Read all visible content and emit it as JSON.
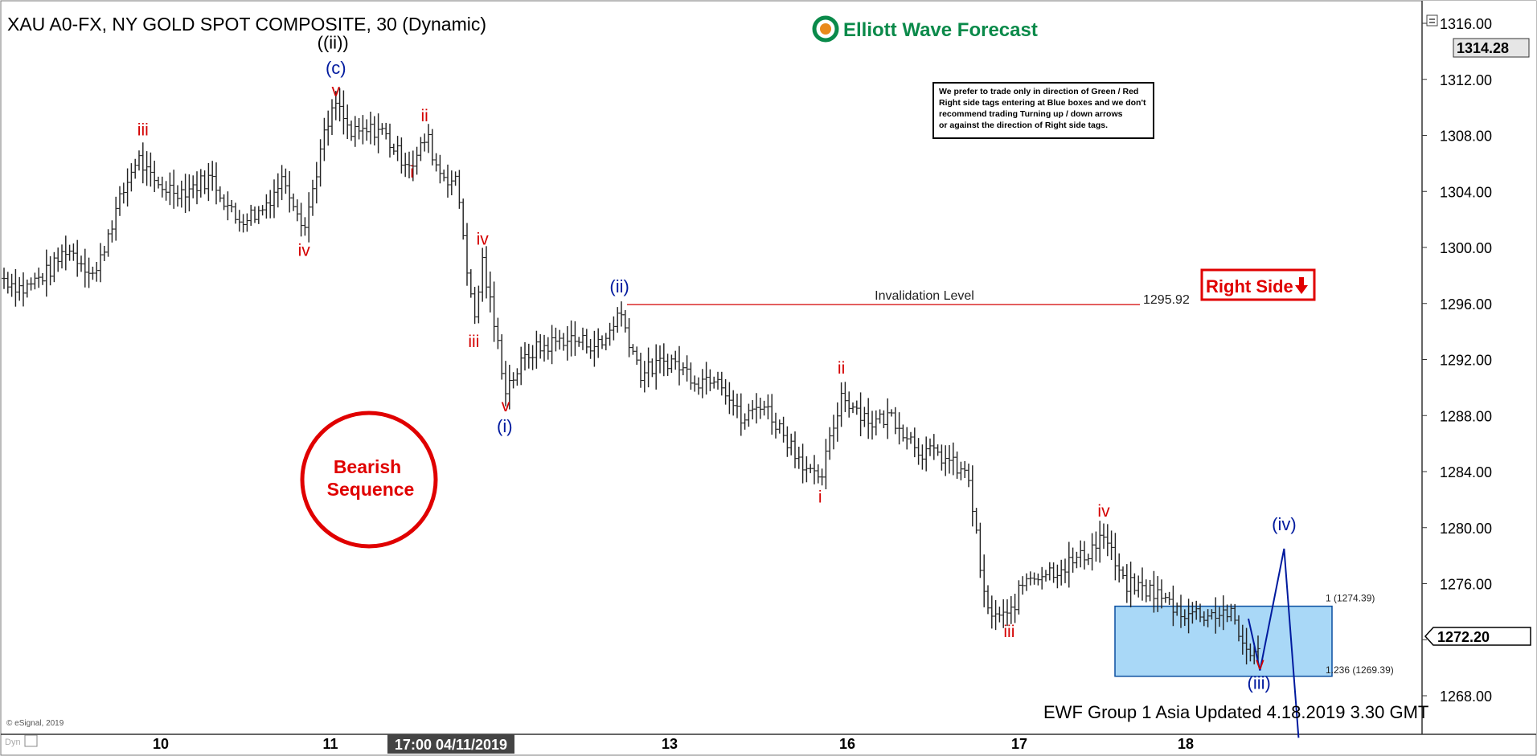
{
  "header": {
    "title": "XAU A0-FX, NY GOLD SPOT COMPOSITE, 30 (Dynamic)",
    "brand": "Elliott Wave Forecast",
    "brand_color": "#0a8a4a"
  },
  "note": {
    "lines": [
      "We prefer to trade only in direction of Green / Red",
      "Right side tags entering at Blue boxes and we don't",
      "recommend trading Turning up / down arrows",
      "or against the direction of Right side tags."
    ]
  },
  "right_side_tag": {
    "label": "Right Side",
    "arrow": "down-arrow-icon",
    "color": "#e00000"
  },
  "bearish_badge": {
    "line1": "Bearish",
    "line2": "Sequence",
    "color": "#e00000"
  },
  "invalidation": {
    "label": "Invalidation Level",
    "value": "1295.92"
  },
  "blue_box": {
    "top_label": "1 (1274.39)",
    "bottom_label": "1.236 (1269.39)",
    "color": "#a9d8f7"
  },
  "footer": {
    "update": "EWF Group 1 Asia Updated 4.18.2019 3.30 GMT",
    "copyright": "© eSignal, 2019",
    "dyn": "Dyn"
  },
  "price_axis": {
    "ticks": [
      "1316.00",
      "1312.00",
      "1308.00",
      "1304.00",
      "1300.00",
      "1296.00",
      "1292.00",
      "1288.00",
      "1284.00",
      "1280.00",
      "1276.00",
      "1272.00",
      "1268.00"
    ],
    "last_price": "1314.28",
    "current_price": "1272.20"
  },
  "time_axis": {
    "labels": [
      "10",
      "11",
      "13",
      "16",
      "17",
      "18"
    ],
    "cursor_label": "17:00 04/11/2019"
  },
  "chart_data": {
    "type": "ohlc",
    "title": "XAU A0-FX, NY GOLD SPOT COMPOSITE, 30 (Dynamic)",
    "ylim": [
      1266,
      1317
    ],
    "anchors": [
      {
        "x": 0,
        "price": 1297.8
      },
      {
        "x": 20,
        "price": 1297.0
      },
      {
        "x": 50,
        "price": 1298.5
      },
      {
        "x": 65,
        "price": 1300.0
      },
      {
        "x": 95,
        "price": 1298.0
      },
      {
        "x": 110,
        "price": 1301.5
      },
      {
        "x": 138,
        "price": 1306.5
      },
      {
        "x": 155,
        "price": 1304.5
      },
      {
        "x": 185,
        "price": 1304.0
      },
      {
        "x": 215,
        "price": 1305.0
      },
      {
        "x": 240,
        "price": 1302.0
      },
      {
        "x": 265,
        "price": 1302.5
      },
      {
        "x": 290,
        "price": 1305.0
      },
      {
        "x": 312,
        "price": 1301.5
      },
      {
        "x": 330,
        "price": 1307.5
      },
      {
        "x": 344,
        "price": 1310.3
      },
      {
        "x": 360,
        "price": 1308.0
      },
      {
        "x": 390,
        "price": 1308.5
      },
      {
        "x": 410,
        "price": 1306.5
      },
      {
        "x": 425,
        "price": 1306.0
      },
      {
        "x": 438,
        "price": 1308.0
      },
      {
        "x": 450,
        "price": 1305.5
      },
      {
        "x": 470,
        "price": 1304.5
      },
      {
        "x": 487,
        "price": 1294.5
      },
      {
        "x": 496,
        "price": 1299.0
      },
      {
        "x": 520,
        "price": 1290.0
      },
      {
        "x": 545,
        "price": 1292.5
      },
      {
        "x": 580,
        "price": 1293.5
      },
      {
        "x": 620,
        "price": 1293.0
      },
      {
        "x": 638,
        "price": 1295.5
      },
      {
        "x": 660,
        "price": 1291.0
      },
      {
        "x": 690,
        "price": 1292.0
      },
      {
        "x": 720,
        "price": 1290.5
      },
      {
        "x": 740,
        "price": 1291.0
      },
      {
        "x": 765,
        "price": 1287.5
      },
      {
        "x": 785,
        "price": 1289.0
      },
      {
        "x": 810,
        "price": 1286.5
      },
      {
        "x": 845,
        "price": 1283.0
      },
      {
        "x": 868,
        "price": 1289.5
      },
      {
        "x": 900,
        "price": 1287.5
      },
      {
        "x": 920,
        "price": 1288.0
      },
      {
        "x": 950,
        "price": 1285.5
      },
      {
        "x": 975,
        "price": 1285.0
      },
      {
        "x": 1000,
        "price": 1283.5
      },
      {
        "x": 1018,
        "price": 1274.0
      },
      {
        "x": 1040,
        "price": 1273.5
      },
      {
        "x": 1060,
        "price": 1276.5
      },
      {
        "x": 1090,
        "price": 1277.0
      },
      {
        "x": 1120,
        "price": 1278.0
      },
      {
        "x": 1140,
        "price": 1279.5
      },
      {
        "x": 1160,
        "price": 1276.0
      },
      {
        "x": 1190,
        "price": 1275.5
      },
      {
        "x": 1220,
        "price": 1274.0
      },
      {
        "x": 1250,
        "price": 1273.8
      },
      {
        "x": 1270,
        "price": 1274.0
      },
      {
        "x": 1285,
        "price": 1271.5
      },
      {
        "x": 1300,
        "price": 1271.0
      }
    ],
    "projection": [
      {
        "x": 1302,
        "price": 1269.8
      },
      {
        "x": 1327,
        "price": 1278.5
      },
      {
        "x": 1342,
        "price": 1265.0
      }
    ],
    "small_projection": [
      {
        "x": 1290,
        "price": 1273.5
      },
      {
        "x": 1302,
        "price": 1269.8
      }
    ],
    "wave_labels": [
      {
        "text": "((ii))",
        "x": 341,
        "price": 1314.2,
        "color": "black"
      },
      {
        "text": "(c)",
        "x": 344,
        "price": 1312.4,
        "color": "blue"
      },
      {
        "text": "v",
        "x": 344,
        "price": 1310.8,
        "color": "red"
      },
      {
        "text": "iii",
        "x": 144,
        "price": 1308.0,
        "color": "red"
      },
      {
        "text": "iv",
        "x": 311,
        "price": 1299.4,
        "color": "red"
      },
      {
        "text": "ii",
        "x": 436,
        "price": 1309.0,
        "color": "red"
      },
      {
        "text": "i",
        "x": 423,
        "price": 1305.0,
        "color": "red"
      },
      {
        "text": "iv",
        "x": 496,
        "price": 1300.2,
        "color": "red"
      },
      {
        "text": "iii",
        "x": 487,
        "price": 1292.9,
        "color": "red"
      },
      {
        "text": "v",
        "x": 520,
        "price": 1288.3,
        "color": "red"
      },
      {
        "text": "(i)",
        "x": 519,
        "price": 1286.8,
        "color": "blue"
      },
      {
        "text": "(ii)",
        "x": 638,
        "price": 1296.8,
        "color": "blue"
      },
      {
        "text": "ii",
        "x": 868,
        "price": 1291.0,
        "color": "red"
      },
      {
        "text": "i",
        "x": 846,
        "price": 1281.8,
        "color": "red"
      },
      {
        "text": "iii",
        "x": 1042,
        "price": 1272.2,
        "color": "red"
      },
      {
        "text": "iv",
        "x": 1140,
        "price": 1280.8,
        "color": "red"
      },
      {
        "text": "v",
        "x": 1302,
        "price": 1269.9,
        "color": "red"
      },
      {
        "text": "(iii)",
        "x": 1301,
        "price": 1268.5,
        "color": "blue"
      },
      {
        "text": "(iv)",
        "x": 1327,
        "price": 1279.8,
        "color": "blue"
      }
    ],
    "invalidation_price": 1295.92,
    "box": {
      "top": 1274.39,
      "bottom": 1269.39
    }
  }
}
